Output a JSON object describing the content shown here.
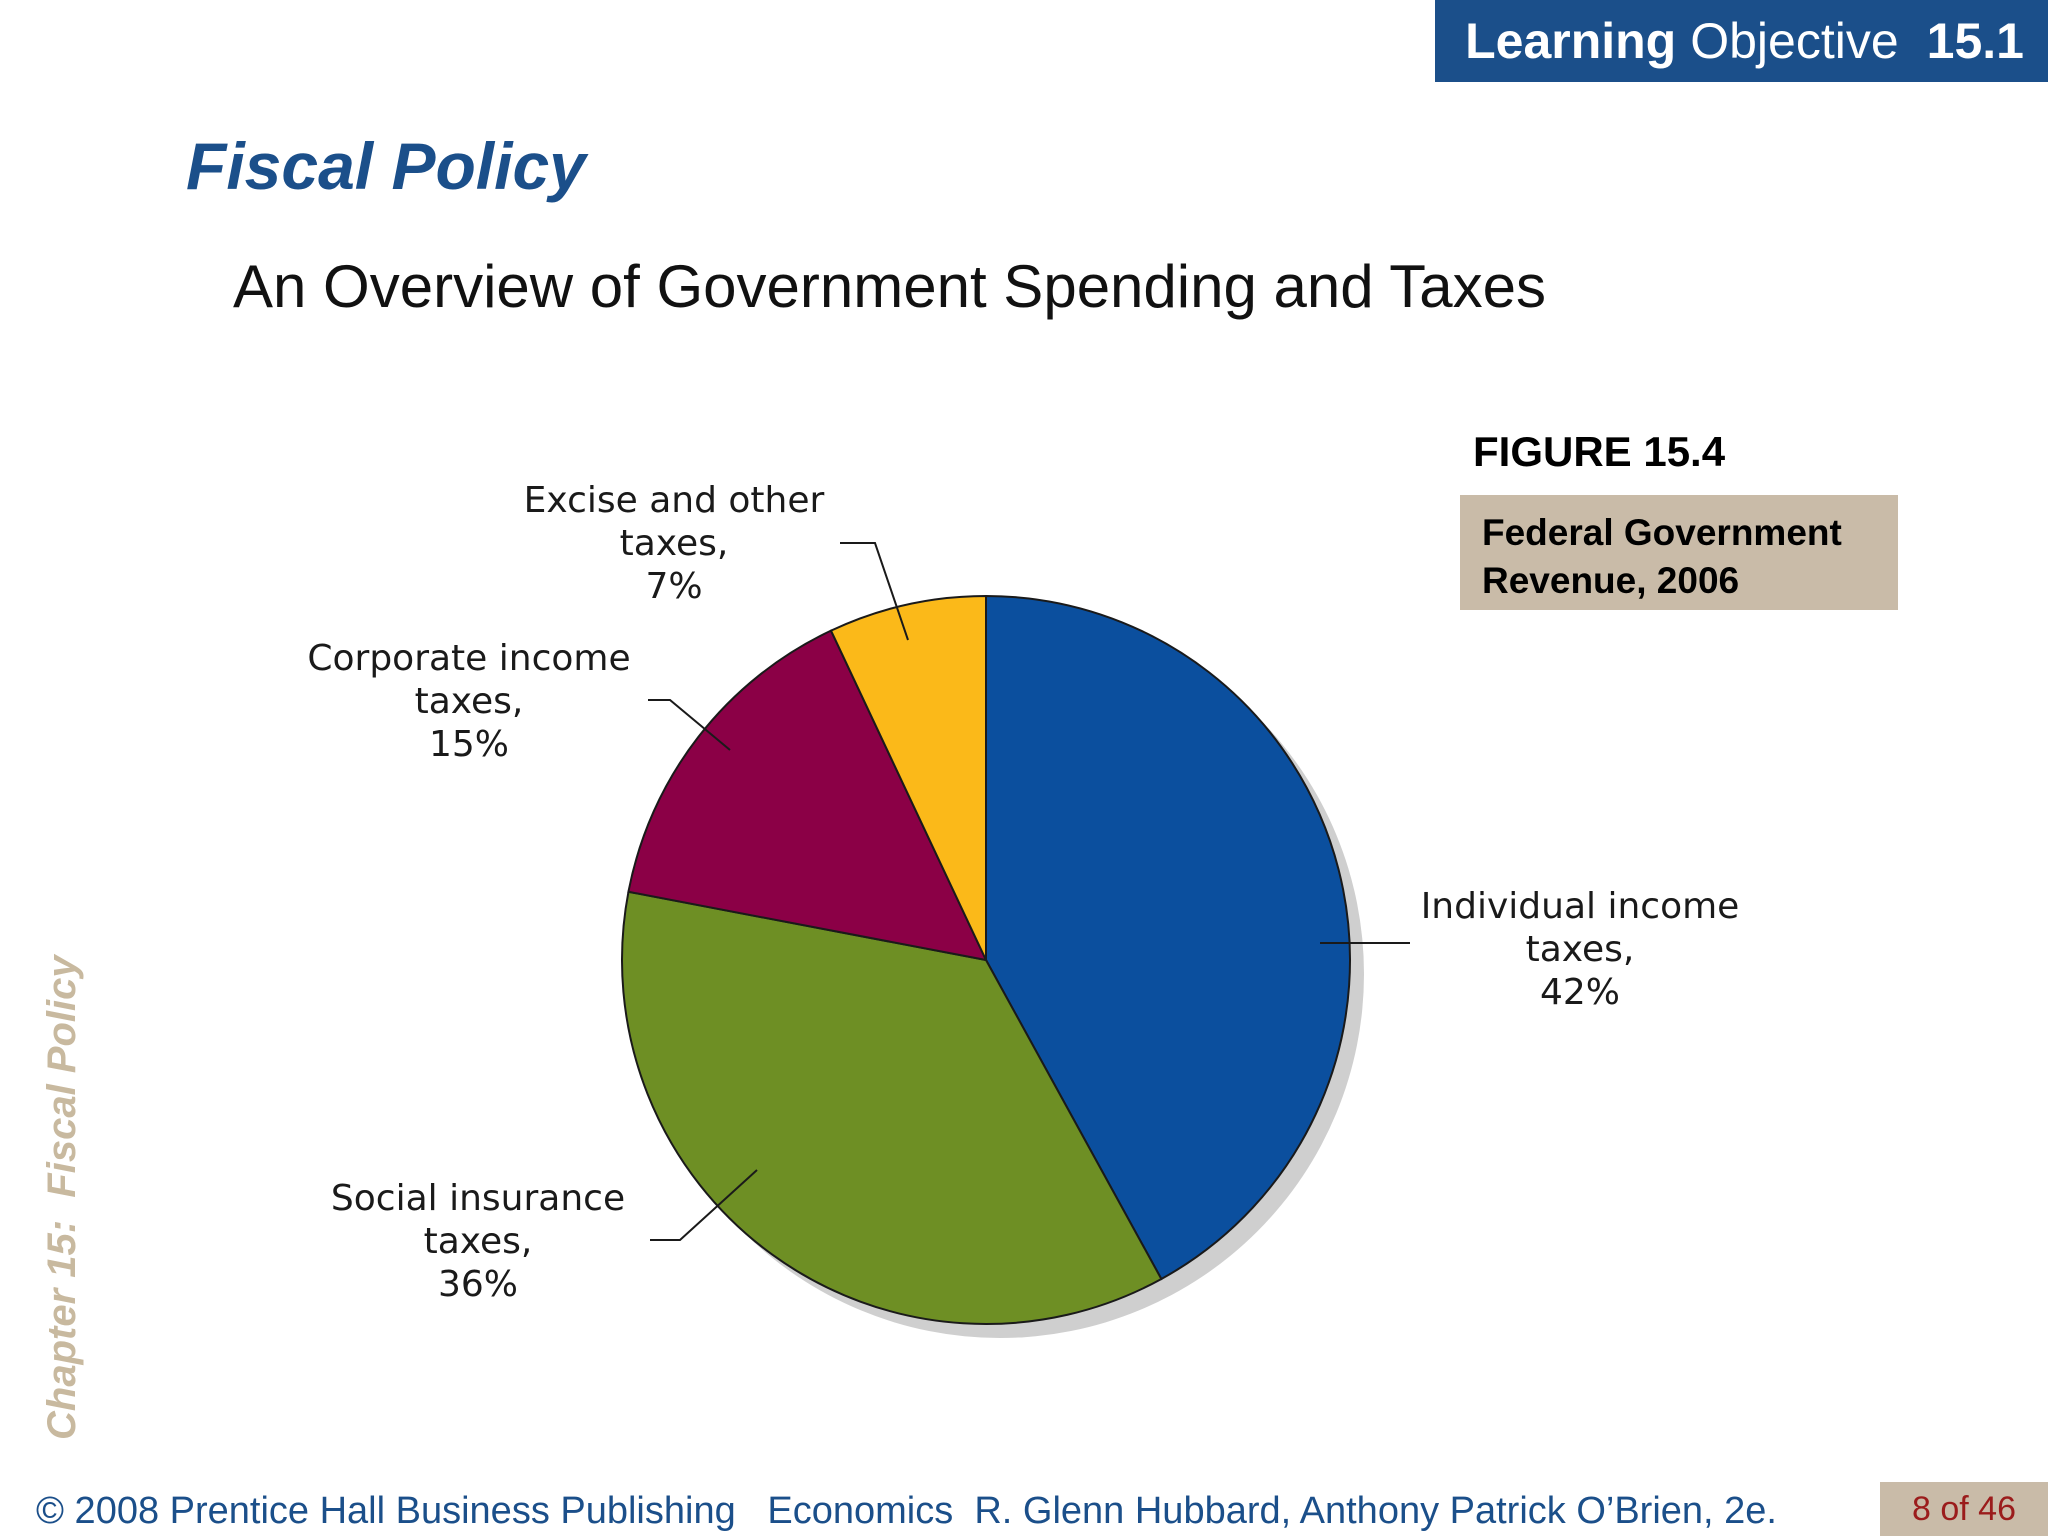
{
  "header": {
    "lo_word1": "Learning",
    "lo_word2": "Objective",
    "lo_number": "15.1"
  },
  "title": "Fiscal Policy",
  "subtitle": "An Overview of Government Spending and Taxes",
  "side_label": "Chapter 15:  Fiscal Policy",
  "figure": {
    "number": "FIGURE 15.4",
    "caption_line1": "Federal Government",
    "caption_line2": "Revenue, 2006"
  },
  "footer": {
    "text": "© 2008 Prentice Hall Business Publishing   Economics  R. Glenn Hubbard, Anthony Patrick O’Brien, 2e.",
    "page": "8 of 46"
  },
  "chart_data": {
    "type": "pie",
    "title": "Federal Government Revenue, 2006",
    "categories": [
      "Individual income taxes",
      "Social insurance taxes",
      "Corporate income taxes",
      "Excise and other taxes"
    ],
    "values": [
      42,
      36,
      15,
      7
    ],
    "colors": [
      "#0b4f9e",
      "#6e8f24",
      "#8b0046",
      "#fbb919"
    ],
    "labels": [
      [
        "Individual income",
        "taxes,",
        "42%"
      ],
      [
        "Social insurance",
        "taxes,",
        "36%"
      ],
      [
        "Corporate income",
        "taxes,",
        "15%"
      ],
      [
        "Excise and other",
        "taxes,",
        "7%"
      ]
    ]
  }
}
